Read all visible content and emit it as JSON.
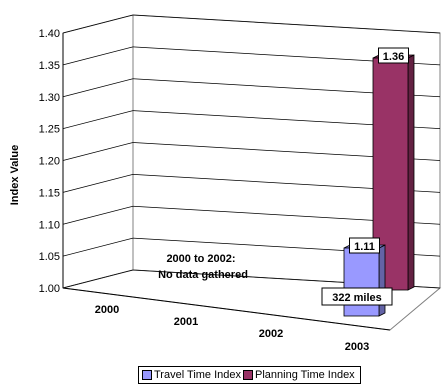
{
  "chart_data": {
    "type": "bar",
    "subtype": "3d-column",
    "ylabel": "Index Value",
    "xlabel": "",
    "ylim": [
      1.0,
      1.4
    ],
    "yticks": [
      "1.00",
      "1.05",
      "1.10",
      "1.15",
      "1.20",
      "1.25",
      "1.30",
      "1.35",
      "1.40"
    ],
    "categories": [
      "2000",
      "2001",
      "2002",
      "2003"
    ],
    "grid": true,
    "legend_position": "bottom",
    "series": [
      {
        "name": "Travel Time Index",
        "color": "#9999ff",
        "values": [
          null,
          null,
          null,
          1.11
        ],
        "labels": [
          "",
          "",
          "",
          "1.11"
        ]
      },
      {
        "name": "Planning Time Index",
        "color": "#993366",
        "values": [
          null,
          null,
          null,
          1.36
        ],
        "labels": [
          "",
          "",
          "",
          "1.36"
        ]
      }
    ],
    "annotations": {
      "note_line1": "2000 to 2002:",
      "note_line2": "No data gathered",
      "miles": "322 miles"
    }
  }
}
